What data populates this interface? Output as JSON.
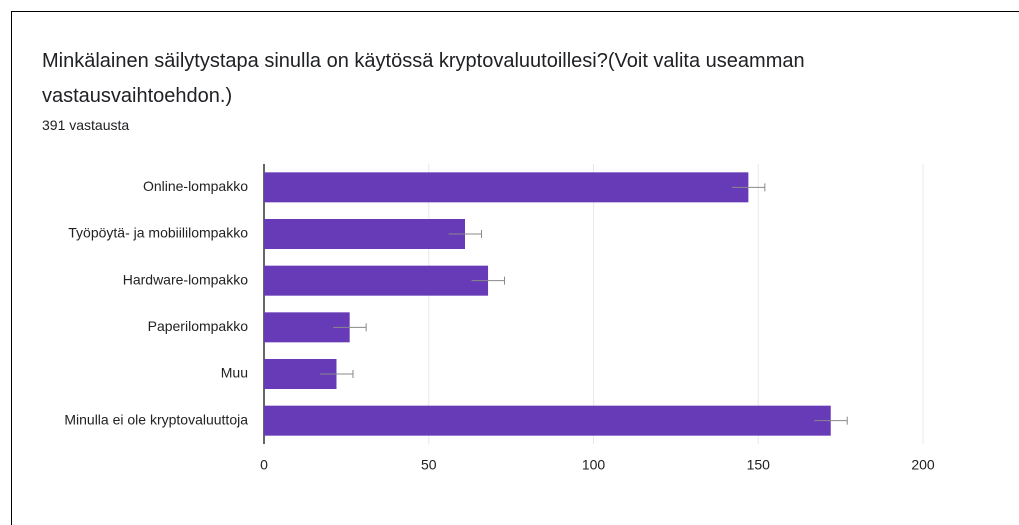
{
  "chart_data": {
    "type": "bar",
    "orientation": "horizontal",
    "title": "Minkälainen säilytystapa sinulla on käytössä kryptovaluutoillesi?(Voit valita useamman vastausvaihtoehdon.)",
    "subtitle": "391 vastausta",
    "categories": [
      "Online-lompakko",
      "Työpöytä- ja mobiililompakko",
      "Hardware-lompakko",
      "Paperilompakko",
      "Muu",
      "Minulla ei ole kryptovaluuttoja"
    ],
    "values": [
      147,
      61,
      68,
      26,
      22,
      172
    ],
    "errors": [
      5,
      5,
      5,
      5,
      5,
      5
    ],
    "color": "#673ab7",
    "xlim": [
      0,
      200
    ],
    "xticks": [
      0,
      50,
      100,
      150,
      200
    ],
    "grid": true
  }
}
